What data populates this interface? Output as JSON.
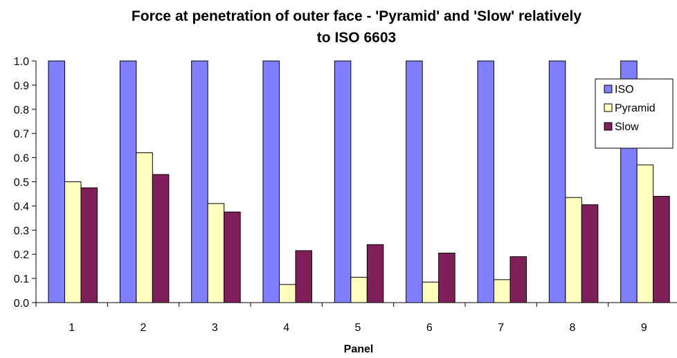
{
  "chart_data": {
    "type": "bar",
    "title_line1": "Force at penetration of outer face - 'Pyramid' and 'Slow' relatively",
    "title_line2": "to ISO 6603",
    "xlabel": "Panel",
    "ylabel": "",
    "categories": [
      "1",
      "2",
      "3",
      "4",
      "5",
      "6",
      "7",
      "8",
      "9"
    ],
    "ylim": [
      0,
      1.0
    ],
    "yticks": [
      "0.0",
      "0.1",
      "0.2",
      "0.3",
      "0.4",
      "0.5",
      "0.6",
      "0.7",
      "0.8",
      "0.9",
      "1.0"
    ],
    "grid": false,
    "legend_position": "right",
    "series": [
      {
        "name": "ISO",
        "color": "#8080FF",
        "values": [
          1.0,
          1.0,
          1.0,
          1.0,
          1.0,
          1.0,
          1.0,
          1.0,
          1.0
        ]
      },
      {
        "name": "Pyramid",
        "color": "#FFFFC0",
        "values": [
          0.5,
          0.62,
          0.41,
          0.075,
          0.105,
          0.085,
          0.095,
          0.435,
          0.57
        ]
      },
      {
        "name": "Slow",
        "color": "#80205A",
        "values": [
          0.475,
          0.53,
          0.375,
          0.215,
          0.24,
          0.205,
          0.19,
          0.405,
          0.44
        ]
      }
    ]
  }
}
